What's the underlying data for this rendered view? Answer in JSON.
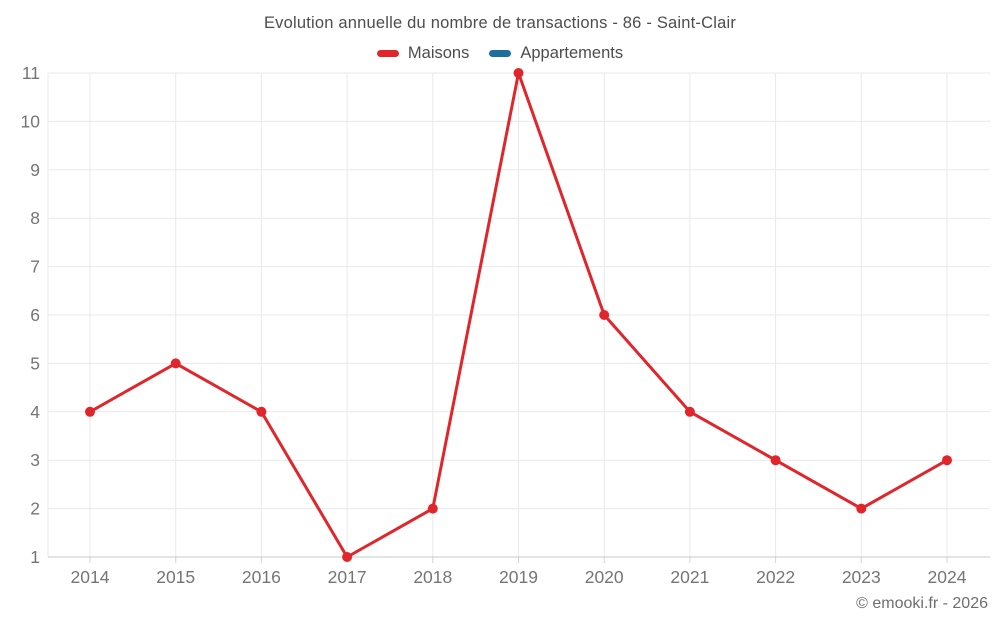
{
  "header": {
    "title": "Evolution annuelle du nombre de transactions - 86 - Saint-Clair"
  },
  "legend": [
    {
      "label": "Maisons",
      "color": "#e0262b"
    },
    {
      "label": "Appartements",
      "color": "#1c6e9e"
    }
  ],
  "footer": {
    "copyright": "© emooki.fr - 2026"
  },
  "chart_data": {
    "type": "line",
    "title": "Evolution annuelle du nombre de transactions - 86 - Saint-Clair",
    "categories": [
      "2014",
      "2015",
      "2016",
      "2017",
      "2018",
      "2019",
      "2020",
      "2021",
      "2022",
      "2023",
      "2024"
    ],
    "series": [
      {
        "name": "Maisons",
        "color": "#e0262b",
        "values": [
          4,
          5,
          4,
          1,
          2,
          11,
          6,
          4,
          3,
          2,
          3
        ]
      },
      {
        "name": "Appartements",
        "color": "#1c6e9e",
        "values": []
      }
    ],
    "xlabel": "",
    "ylabel": "",
    "ylim": [
      1,
      11
    ],
    "y_ticks": [
      1,
      2,
      3,
      4,
      5,
      6,
      7,
      8,
      9,
      10,
      11
    ],
    "grid": true,
    "legend_position": "top",
    "marker": "circle"
  }
}
